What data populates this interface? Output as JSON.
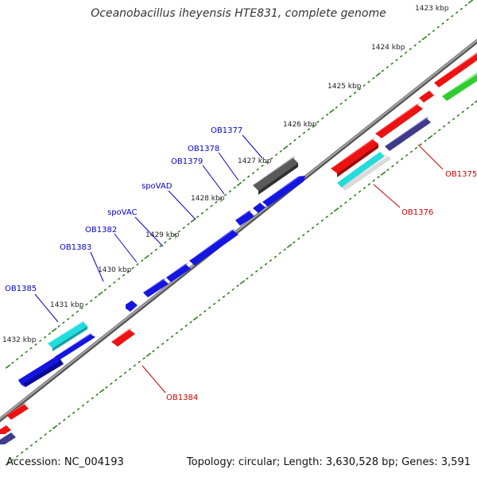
{
  "title": "Oceanobacillus iheyensis HTE831, complete genome",
  "footer": {
    "accession": "Accession: NC_004193",
    "stats": "Topology: circular; Length: 3,630,528 bp; Genes: 3,591"
  },
  "colors": {
    "backbone": "#8a8a8a",
    "tick_major": "#2f7f1f",
    "tick_minor": "#2f7f1f",
    "forward_label": "#0000cc",
    "reverse_label": "#cc0000",
    "blue": "#1515e0",
    "red": "#ee1111",
    "cyan": "#22dddd",
    "gray": "#5a5a5a",
    "navy": "#3f3a8a",
    "green": "#2fcc2f",
    "lightgray": "#c7c7c7"
  },
  "scale_labels": [
    "1423 kbp",
    "1424 kbp",
    "1425 kbp",
    "1426 kbp",
    "1427 kbp",
    "1428 kbp",
    "1429 kbp",
    "1430 kbp",
    "1431 kbp",
    "1432 kbp"
  ],
  "gene_labels": [
    {
      "name": "OB1377",
      "strand": "forward"
    },
    {
      "name": "OB1378",
      "strand": "forward"
    },
    {
      "name": "OB1379",
      "strand": "forward"
    },
    {
      "name": "spoVAD",
      "strand": "forward"
    },
    {
      "name": "spoVAC",
      "strand": "forward"
    },
    {
      "name": "OB1382",
      "strand": "forward"
    },
    {
      "name": "OB1383",
      "strand": "forward"
    },
    {
      "name": "OB1385",
      "strand": "forward"
    },
    {
      "name": "OB1375",
      "strand": "reverse"
    },
    {
      "name": "OB1376",
      "strand": "reverse"
    },
    {
      "name": "OB1384",
      "strand": "reverse"
    }
  ]
}
